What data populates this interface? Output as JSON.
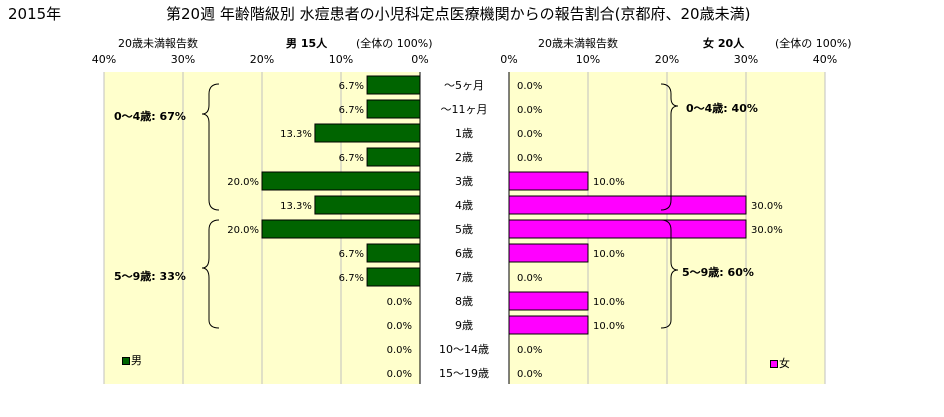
{
  "header": {
    "year": "2015年",
    "title": "第20週 年齢階級別 水痘患者の小児科定点医療機関からの報告割合(京都府、20歳未満)"
  },
  "male": {
    "axis_title": "20歳未満報告数",
    "summary": "男 15人",
    "summary_note": "(全体の 100%)",
    "legend": "男",
    "group1": "0～4歳: 67%",
    "group2": "5～9歳: 33%"
  },
  "female": {
    "axis_title": "20歳未満報告数",
    "summary": "女 20人",
    "summary_note": "(全体の 100%)",
    "legend": "女",
    "group1": "0～4歳: 40%",
    "group2": "5～9歳: 60%"
  },
  "colors": {
    "male": "#006400",
    "female": "#ff00ff",
    "plot_bg": "#ffffcc",
    "grid": "#c0c0c0"
  },
  "chart_data": {
    "type": "bar",
    "orientation": "horizontal",
    "categories": [
      "～5ヶ月",
      "～11ヶ月",
      "1歳",
      "2歳",
      "3歳",
      "4歳",
      "5歳",
      "6歳",
      "7歳",
      "8歳",
      "9歳",
      "10～14歳",
      "15～19歳"
    ],
    "series": [
      {
        "name": "男",
        "values": [
          6.7,
          6.7,
          13.3,
          6.7,
          20.0,
          13.3,
          20.0,
          6.7,
          6.7,
          0.0,
          0.0,
          0.0,
          0.0
        ],
        "labels": [
          "6.7%",
          "6.7%",
          "13.3%",
          "6.7%",
          "20.0%",
          "13.3%",
          "20.0%",
          "6.7%",
          "6.7%",
          "0.0%",
          "0.0%",
          "0.0%",
          "0.0%"
        ]
      },
      {
        "name": "女",
        "values": [
          0.0,
          0.0,
          0.0,
          0.0,
          10.0,
          30.0,
          30.0,
          10.0,
          0.0,
          10.0,
          10.0,
          0.0,
          0.0
        ],
        "labels": [
          "0.0%",
          "0.0%",
          "0.0%",
          "0.0%",
          "10.0%",
          "30.0%",
          "30.0%",
          "10.0%",
          "0.0%",
          "10.0%",
          "10.0%",
          "0.0%",
          "0.0%"
        ]
      }
    ],
    "xlim": [
      0,
      40
    ],
    "male_ticks": [
      "40%",
      "30%",
      "20%",
      "10%",
      "0%"
    ],
    "female_ticks": [
      "0%",
      "10%",
      "20%",
      "30%",
      "40%"
    ],
    "grid": true
  }
}
